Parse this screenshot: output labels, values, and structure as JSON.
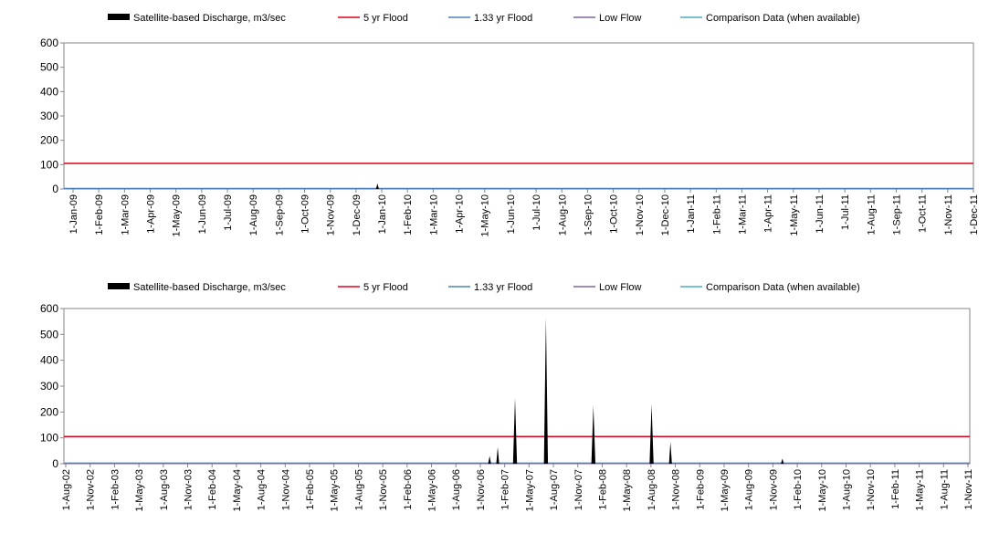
{
  "colors": {
    "satellite": "#000000",
    "flood5": "#e0001b",
    "flood133": "#4f81bd",
    "lowflow": "#8064a2",
    "comparison": "#4bacc6"
  },
  "chart_data": [
    {
      "type": "area",
      "legend": [
        "Satellite-based Discharge, m3/sec",
        "5 yr Flood",
        "1.33 yr Flood",
        "Low Flow",
        "Comparison Data (when available)"
      ],
      "legend_placement": "top",
      "x_range": [
        "2009-01-01",
        "2012-01-20"
      ],
      "ylim": [
        0,
        600
      ],
      "yticks": [
        0,
        100,
        200,
        300,
        400,
        500,
        600
      ],
      "grid": false,
      "xticks": [
        "1-Jan-09",
        "1-Feb-09",
        "1-Mar-09",
        "1-Apr-09",
        "1-May-09",
        "1-Jun-09",
        "1-Jul-09",
        "1-Aug-09",
        "1-Sep-09",
        "1-Oct-09",
        "1-Nov-09",
        "1-Dec-09",
        "1-Jan-10",
        "1-Feb-10",
        "1-Mar-10",
        "1-Apr-10",
        "1-May-10",
        "1-Jun-10",
        "1-Jul-10",
        "1-Aug-10",
        "1-Sep-10",
        "1-Oct-10",
        "1-Nov-10",
        "1-Dec-10",
        "1-Jan-11",
        "1-Feb-11",
        "1-Mar-11",
        "1-Apr-11",
        "1-May-11",
        "1-Jun-11",
        "1-Jul-11",
        "1-Aug-11",
        "1-Sep-11",
        "1-Oct-11",
        "1-Nov-11",
        "1-Dec-11"
      ],
      "tick_dates": [
        "2009-01-01",
        "2009-02-01",
        "2009-03-01",
        "2009-04-01",
        "2009-05-01",
        "2009-06-01",
        "2009-07-01",
        "2009-08-01",
        "2009-09-01",
        "2009-10-01",
        "2009-11-01",
        "2009-12-01",
        "2010-01-01",
        "2010-02-01",
        "2010-03-01",
        "2010-04-01",
        "2010-05-01",
        "2010-06-01",
        "2010-07-01",
        "2010-08-01",
        "2010-09-01",
        "2010-10-01",
        "2010-11-01",
        "2010-12-01",
        "2011-01-01",
        "2011-02-01",
        "2011-03-01",
        "2011-04-01",
        "2011-05-01",
        "2011-06-01",
        "2011-07-01",
        "2011-08-01",
        "2011-09-01",
        "2011-10-01",
        "2011-11-01",
        "2011-12-01"
      ],
      "flood5": 105,
      "flood133": 2,
      "lowflow": 0,
      "spikes": [
        {
          "date": "2010-01-20",
          "value": 22
        }
      ]
    },
    {
      "type": "area",
      "legend": [
        "Satellite-based Discharge, m3/sec",
        "5 yr Flood",
        "1.33 yr Flood",
        "Low Flow",
        "Comparison Data (when available)"
      ],
      "legend_placement": "top",
      "x_range": [
        "2002-07-15",
        "2011-12-31"
      ],
      "ylim": [
        0,
        600
      ],
      "yticks": [
        0,
        100,
        200,
        300,
        400,
        500,
        600
      ],
      "grid": false,
      "xticks": [
        "1-Aug-02",
        "1-Nov-02",
        "1-Feb-03",
        "1-May-03",
        "1-Aug-03",
        "1-Nov-03",
        "1-Feb-04",
        "1-May-04",
        "1-Aug-04",
        "1-Nov-04",
        "1-Feb-05",
        "1-May-05",
        "1-Aug-05",
        "1-Nov-05",
        "1-Feb-06",
        "1-May-06",
        "1-Aug-06",
        "1-Nov-06",
        "1-Feb-07",
        "1-May-07",
        "1-Aug-07",
        "1-Nov-07",
        "1-Feb-08",
        "1-May-08",
        "1-Aug-08",
        "1-Nov-08",
        "1-Feb-09",
        "1-May-09",
        "1-Aug-09",
        "1-Nov-09",
        "1-Feb-10",
        "1-May-10",
        "1-Aug-10",
        "1-Nov-10",
        "1-Feb-11",
        "1-May-11",
        "1-Aug-11",
        "1-Nov-11"
      ],
      "tick_dates": [
        "2002-08-01",
        "2002-11-01",
        "2003-02-01",
        "2003-05-01",
        "2003-08-01",
        "2003-11-01",
        "2004-02-01",
        "2004-05-01",
        "2004-08-01",
        "2004-11-01",
        "2005-02-01",
        "2005-05-01",
        "2005-08-01",
        "2005-11-01",
        "2006-02-01",
        "2006-05-01",
        "2006-08-01",
        "2006-11-01",
        "2007-02-01",
        "2007-05-01",
        "2007-08-01",
        "2007-11-01",
        "2008-02-01",
        "2008-05-01",
        "2008-08-01",
        "2008-11-01",
        "2009-02-01",
        "2009-05-01",
        "2009-08-01",
        "2009-11-01",
        "2010-02-01",
        "2010-05-01",
        "2010-08-01",
        "2010-11-01",
        "2011-02-01",
        "2011-05-01",
        "2011-08-01",
        "2011-11-01"
      ],
      "flood5": 105,
      "flood133": 2,
      "lowflow": 0,
      "spikes": [
        {
          "date": "2006-12-25",
          "value": 30
        },
        {
          "date": "2007-01-25",
          "value": 65
        },
        {
          "date": "2007-04-01",
          "value": 255
        },
        {
          "date": "2007-07-28",
          "value": 565
        },
        {
          "date": "2008-01-25",
          "value": 225
        },
        {
          "date": "2008-09-03",
          "value": 230
        },
        {
          "date": "2008-11-14",
          "value": 85
        },
        {
          "date": "2010-01-15",
          "value": 20
        }
      ]
    }
  ]
}
